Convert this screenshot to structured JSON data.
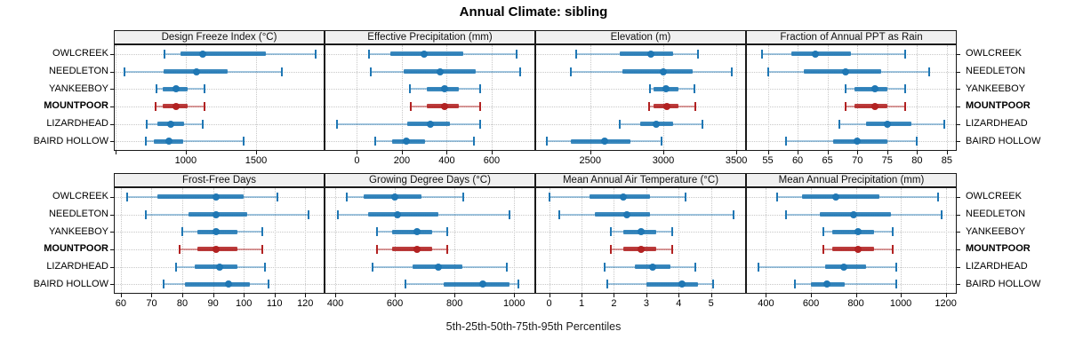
{
  "title": "Annual Climate: sibling",
  "caption": "5th-25th-50th-75th-95th Percentiles",
  "sites": [
    "OWLCREEK",
    "NEEDLETON",
    "YANKEEBOY",
    "MOUNTPOOR",
    "LIZARDHEAD",
    "BAIRD HOLLOW"
  ],
  "highlight_site": "MOUNTPOOR",
  "percentile_labels": [
    "p5",
    "p25",
    "p50",
    "p75",
    "p95"
  ],
  "colors": {
    "series_normal": "#1f77b4",
    "series_normal_light": "rgba(31,119,180,0.42)",
    "series_highlight": "#b22222",
    "series_highlight_light": "rgba(178,34,34,0.45)",
    "panel_border": "#1a1a1a",
    "header_bg": "#f0f0f0",
    "gridline": "#c8c8c8"
  },
  "chart_data": [
    {
      "type": "scatter",
      "style": "percentile-interval-dotplot",
      "title": "Design Freeze Index (°C)",
      "row": 0,
      "col": 0,
      "xlim": [
        495,
        1980
      ],
      "ticks": [
        500,
        1000,
        1500
      ],
      "tick_labels": [
        "",
        "1000",
        "1500"
      ],
      "categories": [
        "OWLCREEK",
        "NEEDLETON",
        "YANKEEBOY",
        "MOUNTPOOR",
        "LIZARDHEAD",
        "BAIRD HOLLOW"
      ],
      "values": [
        [
          850,
          960,
          1120,
          1570,
          1925
        ],
        [
          565,
          840,
          1075,
          1300,
          1680
        ],
        [
          790,
          835,
          930,
          1015,
          1135
        ],
        [
          785,
          835,
          930,
          1015,
          1135
        ],
        [
          725,
          800,
          890,
          985,
          1120
        ],
        [
          715,
          775,
          880,
          980,
          1410
        ]
      ]
    },
    {
      "type": "scatter",
      "style": "percentile-interval-dotplot",
      "title": "Effective Precipitation (mm)",
      "row": 0,
      "col": 1,
      "xlim": [
        -140,
        790
      ],
      "ticks": [
        0,
        200,
        400,
        600
      ],
      "tick_labels": [
        "0",
        "200",
        "400",
        "600"
      ],
      "categories": [
        "OWLCREEK",
        "NEEDLETON",
        "YANKEEBOY",
        "MOUNTPOOR",
        "LIZARDHEAD",
        "BAIRD HOLLOW"
      ],
      "values": [
        [
          55,
          150,
          300,
          475,
          710
        ],
        [
          60,
          210,
          370,
          530,
          725
        ],
        [
          235,
          310,
          390,
          455,
          550
        ],
        [
          240,
          310,
          390,
          455,
          550
        ],
        [
          -90,
          225,
          325,
          415,
          550
        ],
        [
          80,
          155,
          220,
          305,
          520
        ]
      ]
    },
    {
      "type": "scatter",
      "style": "percentile-interval-dotplot",
      "title": "Elevation (m)",
      "row": 0,
      "col": 2,
      "xlim": [
        2130,
        3560
      ],
      "ticks": [
        2500,
        3000,
        3500
      ],
      "tick_labels": [
        "2500",
        "3000",
        "3500"
      ],
      "categories": [
        "OWLCREEK",
        "NEEDLETON",
        "YANKEEBOY",
        "MOUNTPOOR",
        "LIZARDHEAD",
        "BAIRD HOLLOW"
      ],
      "values": [
        [
          2405,
          2700,
          2915,
          3070,
          3240
        ],
        [
          2370,
          2720,
          3000,
          3200,
          3470
        ],
        [
          2910,
          2935,
          3020,
          3105,
          3215
        ],
        [
          2905,
          2935,
          3025,
          3105,
          3220
        ],
        [
          2700,
          2840,
          2950,
          3065,
          3265
        ],
        [
          2205,
          2365,
          2600,
          2775,
          2985
        ]
      ]
    },
    {
      "type": "scatter",
      "style": "percentile-interval-dotplot",
      "title": "Fraction of Annual PPT as Rain",
      "row": 0,
      "col": 3,
      "xlim": [
        51.5,
        86.5
      ],
      "ticks": [
        55,
        60,
        65,
        70,
        75,
        80,
        85
      ],
      "tick_labels": [
        "55",
        "60",
        "65",
        "70",
        "75",
        "80",
        "85"
      ],
      "categories": [
        "OWLCREEK",
        "NEEDLETON",
        "YANKEEBOY",
        "MOUNTPOOR",
        "LIZARDHEAD",
        "BAIRD HOLLOW"
      ],
      "values": [
        [
          54,
          59,
          63,
          69,
          78
        ],
        [
          55,
          61,
          68,
          74,
          82
        ],
        [
          68,
          69.5,
          73,
          75,
          78
        ],
        [
          68,
          69.5,
          73,
          75,
          78
        ],
        [
          67,
          71.5,
          75,
          79,
          84.5
        ],
        [
          58,
          66,
          70,
          75,
          80
        ]
      ]
    },
    {
      "type": "scatter",
      "style": "percentile-interval-dotplot",
      "title": "Frost-Free Days",
      "row": 1,
      "col": 0,
      "xlim": [
        58,
        126
      ],
      "ticks": [
        60,
        70,
        80,
        90,
        100,
        110,
        120
      ],
      "tick_labels": [
        "60",
        "70",
        "80",
        "90",
        "100",
        "110",
        "120"
      ],
      "categories": [
        "OWLCREEK",
        "NEEDLETON",
        "YANKEEBOY",
        "MOUNTPOOR",
        "LIZARDHEAD",
        "BAIRD HOLLOW"
      ],
      "values": [
        [
          62,
          72,
          91,
          100,
          111
        ],
        [
          68,
          82,
          91,
          101,
          121
        ],
        [
          80,
          85,
          91,
          98,
          106
        ],
        [
          79,
          85,
          91,
          98,
          106
        ],
        [
          78,
          84,
          92,
          98,
          107
        ],
        [
          74,
          81,
          95,
          102,
          108
        ]
      ]
    },
    {
      "type": "scatter",
      "style": "percentile-interval-dotplot",
      "title": "Growing Degree Days (°C)",
      "row": 1,
      "col": 1,
      "xlim": [
        367,
        1068
      ],
      "ticks": [
        400,
        600,
        800,
        1000
      ],
      "tick_labels": [
        "400",
        "600",
        "800",
        "1000"
      ],
      "categories": [
        "OWLCREEK",
        "NEEDLETON",
        "YANKEEBOY",
        "MOUNTPOOR",
        "LIZARDHEAD",
        "BAIRD HOLLOW"
      ],
      "values": [
        [
          440,
          495,
          600,
          690,
          830
        ],
        [
          410,
          510,
          610,
          745,
          985
        ],
        [
          540,
          590,
          675,
          725,
          775
        ],
        [
          540,
          590,
          675,
          725,
          775
        ],
        [
          525,
          660,
          745,
          825,
          975
        ],
        [
          635,
          765,
          895,
          985,
          1015
        ]
      ]
    },
    {
      "type": "scatter",
      "style": "percentile-interval-dotplot",
      "title": "Mean Annual Air Temperature (°C)",
      "row": 1,
      "col": 2,
      "xlim": [
        -0.4,
        6.05
      ],
      "ticks": [
        0,
        1,
        2,
        3,
        4,
        5
      ],
      "tick_labels": [
        "0",
        "1",
        "2",
        "3",
        "4",
        "5"
      ],
      "categories": [
        "OWLCREEK",
        "NEEDLETON",
        "YANKEEBOY",
        "MOUNTPOOR",
        "LIZARDHEAD",
        "BAIRD HOLLOW"
      ],
      "values": [
        [
          0.0,
          1.25,
          2.3,
          3.1,
          4.2
        ],
        [
          0.3,
          1.4,
          2.4,
          3.1,
          5.7
        ],
        [
          1.9,
          2.3,
          2.85,
          3.3,
          3.8
        ],
        [
          1.9,
          2.3,
          2.85,
          3.3,
          3.8
        ],
        [
          1.7,
          2.65,
          3.2,
          3.75,
          4.5
        ],
        [
          1.8,
          3.0,
          4.1,
          4.6,
          5.05
        ]
      ]
    },
    {
      "type": "scatter",
      "style": "percentile-interval-dotplot",
      "title": "Mean Annual Precipitation (mm)",
      "row": 1,
      "col": 3,
      "xlim": [
        315,
        1245
      ],
      "ticks": [
        400,
        600,
        800,
        1000,
        1200
      ],
      "tick_labels": [
        "400",
        "600",
        "800",
        "1000",
        "1200"
      ],
      "categories": [
        "OWLCREEK",
        "NEEDLETON",
        "YANKEEBOY",
        "MOUNTPOOR",
        "LIZARDHEAD",
        "BAIRD HOLLOW"
      ],
      "values": [
        [
          450,
          560,
          710,
          905,
          1165
        ],
        [
          490,
          640,
          790,
          955,
          1180
        ],
        [
          655,
          695,
          810,
          880,
          965
        ],
        [
          655,
          695,
          810,
          880,
          965
        ],
        [
          365,
          665,
          745,
          845,
          980
        ],
        [
          530,
          600,
          670,
          750,
          980
        ]
      ]
    }
  ]
}
